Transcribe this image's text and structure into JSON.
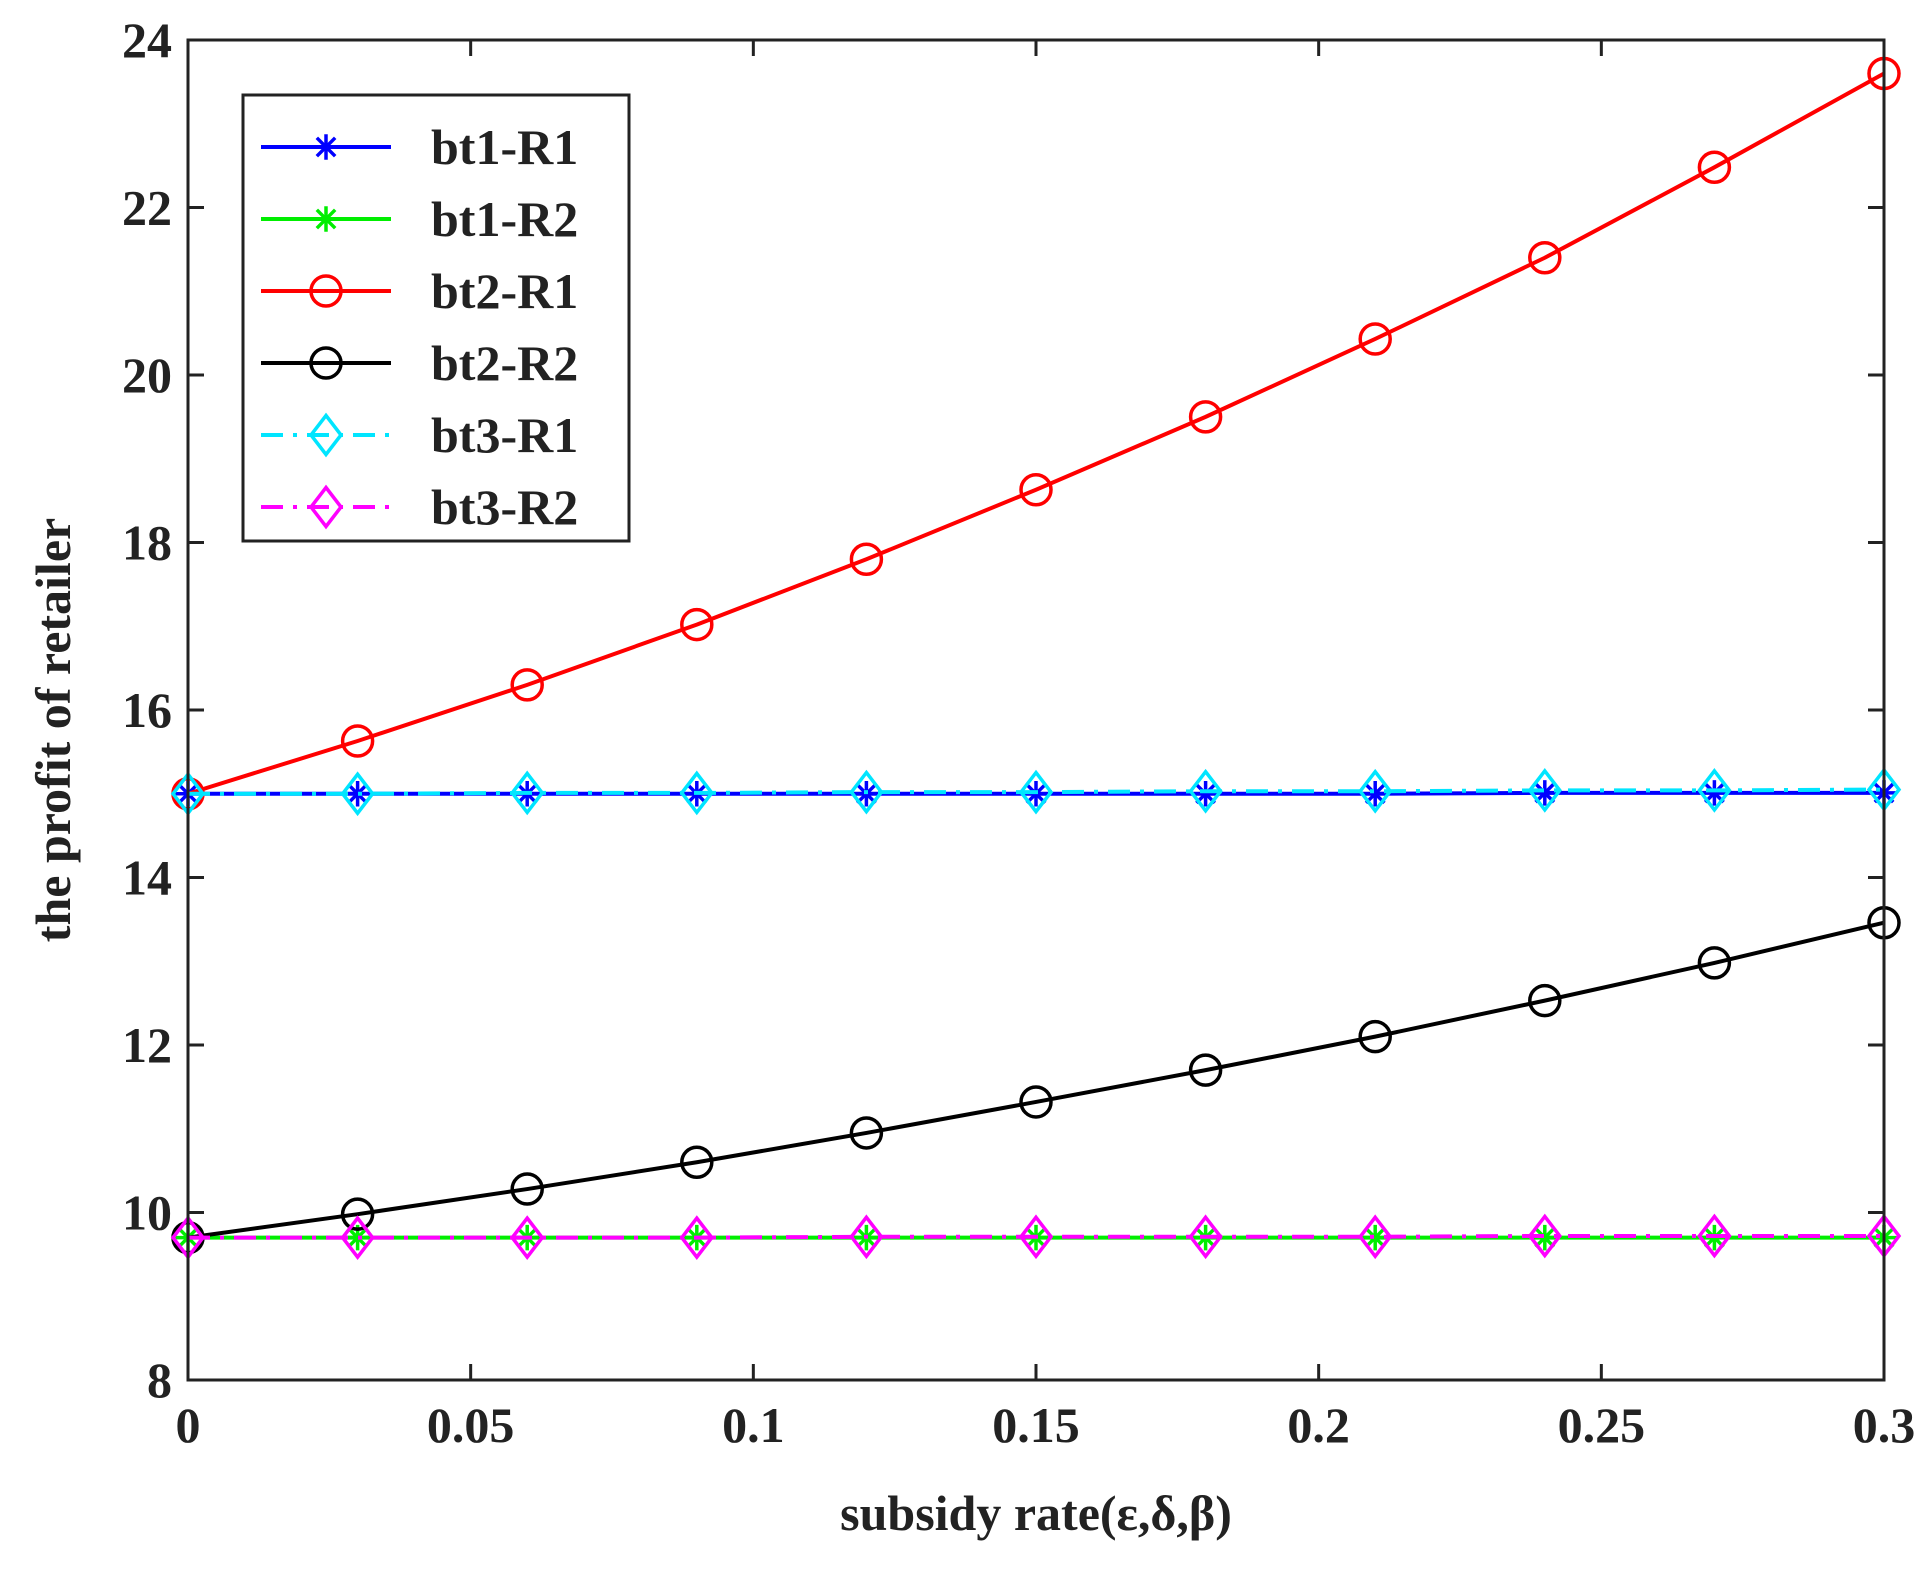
{
  "chart_data": {
    "type": "line",
    "title": "",
    "xlabel": "subsidy rate(ε,δ,β)",
    "ylabel": "the profit of retailer",
    "xlim": [
      0,
      0.3
    ],
    "ylim": [
      8,
      24
    ],
    "xticks": [
      0,
      0.05,
      0.1,
      0.15,
      0.2,
      0.25,
      0.3
    ],
    "xtick_labels": [
      "0",
      "0.05",
      "0.1",
      "0.15",
      "0.2",
      "0.25",
      "0.3"
    ],
    "yticks": [
      8,
      10,
      12,
      14,
      16,
      18,
      20,
      22,
      24
    ],
    "ytick_labels": [
      "8",
      "10",
      "12",
      "14",
      "16",
      "18",
      "20",
      "22",
      "24"
    ],
    "grid": false,
    "legend_position": "top-left",
    "x": [
      0,
      0.03,
      0.06,
      0.09,
      0.12,
      0.15,
      0.18,
      0.21,
      0.24,
      0.27,
      0.3
    ],
    "series": [
      {
        "name": "bt1-R1",
        "color": "#0000ff",
        "marker": "asterisk",
        "dash": "solid",
        "values": [
          15.0,
          15.0,
          15.0,
          15.0,
          15.0,
          15.0,
          15.0,
          15.0,
          15.01,
          15.01,
          15.01
        ]
      },
      {
        "name": "bt1-R2",
        "color": "#00ee00",
        "marker": "asterisk",
        "dash": "solid",
        "values": [
          9.7,
          9.7,
          9.7,
          9.7,
          9.7,
          9.7,
          9.7,
          9.7,
          9.7,
          9.7,
          9.7
        ]
      },
      {
        "name": "bt2-R1",
        "color": "#ff0000",
        "marker": "circle",
        "dash": "solid",
        "values": [
          15.0,
          15.63,
          16.3,
          17.02,
          17.8,
          18.63,
          19.5,
          20.43,
          21.4,
          22.48,
          23.6
        ]
      },
      {
        "name": "bt2-R2",
        "color": "#000000",
        "marker": "circle",
        "dash": "solid",
        "values": [
          9.7,
          9.98,
          10.28,
          10.6,
          10.95,
          11.32,
          11.7,
          12.1,
          12.53,
          12.98,
          13.46
        ]
      },
      {
        "name": "bt3-R1",
        "color": "#00e5ff",
        "marker": "diamond",
        "dash": "dashdot",
        "values": [
          15.0,
          15.0,
          15.01,
          15.01,
          15.02,
          15.02,
          15.03,
          15.03,
          15.04,
          15.04,
          15.05
        ]
      },
      {
        "name": "bt3-R2",
        "color": "#ff00ff",
        "marker": "diamond",
        "dash": "dashdot",
        "values": [
          9.7,
          9.7,
          9.7,
          9.7,
          9.71,
          9.71,
          9.71,
          9.71,
          9.72,
          9.72,
          9.72
        ]
      }
    ]
  }
}
